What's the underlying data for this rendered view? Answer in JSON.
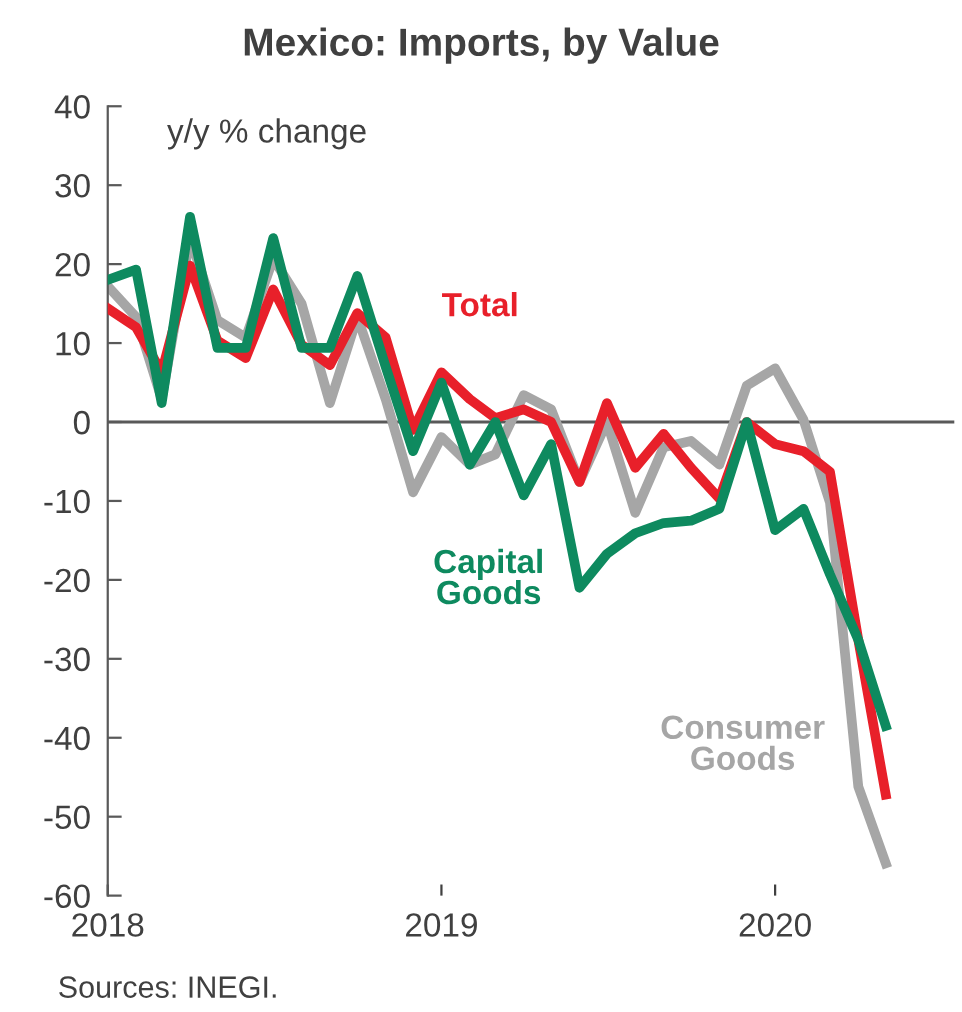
{
  "chart_data": {
    "type": "line",
    "title": "Mexico: Imports, by Value",
    "ylabel": "y/y % change",
    "x": [
      "2018-01",
      "2018-02",
      "2018-03",
      "2018-04",
      "2018-05",
      "2018-06",
      "2018-07",
      "2018-08",
      "2018-09",
      "2018-10",
      "2018-11",
      "2018-12",
      "2019-01",
      "2019-02",
      "2019-03",
      "2019-04",
      "2019-05",
      "2019-06",
      "2019-07",
      "2019-08",
      "2019-09",
      "2019-10",
      "2019-11",
      "2019-12",
      "2020-01",
      "2020-02",
      "2020-03",
      "2020-04",
      "2020-05"
    ],
    "series": [
      {
        "name": "Consumer\nGoods",
        "color": "#a6a6a6",
        "values": [
          17.2,
          13.3,
          2.9,
          23.3,
          12.9,
          10.7,
          20.7,
          15,
          2.4,
          13.3,
          2.9,
          -8.9,
          -1.9,
          -5.4,
          -4.1,
          3.4,
          1.6,
          -7.6,
          0,
          -11.5,
          -3.2,
          -2.4,
          -5.4,
          4.6,
          6.8,
          0.3,
          -10.2,
          -46.2,
          -55.9
        ]
      },
      {
        "name": "Total",
        "color": "#e8202a",
        "values": [
          14.4,
          12,
          6.3,
          19.8,
          10.3,
          8.1,
          16.8,
          9.8,
          7.2,
          13.8,
          10.7,
          -1,
          6.3,
          2.9,
          0.5,
          1.6,
          0,
          -7.6,
          2.4,
          -5.8,
          -1.5,
          -5.8,
          -9.7,
          0,
          -2.8,
          -3.7,
          -6.3,
          -27.6,
          -47.2
        ]
      },
      {
        "name": "Capital\nGoods",
        "color": "#0e8a5f",
        "values": [
          18,
          19.3,
          2.4,
          26,
          9.4,
          9.4,
          23.3,
          9.4,
          9.4,
          18.5,
          7,
          -3.7,
          5,
          -5.4,
          0,
          -9.3,
          -2.8,
          -21,
          -16.7,
          -14.1,
          -12.8,
          -12.5,
          -11,
          0,
          -13.7,
          -11,
          -19.3,
          -27.6,
          -38.5
        ]
      }
    ],
    "xlim": [
      "2018-01-01",
      "2020-07-15"
    ],
    "xticks": [
      {
        "value": "2018-01-01",
        "label": "2018"
      },
      {
        "value": "2019-01-01",
        "label": "2019"
      },
      {
        "value": "2020-01-01",
        "label": "2020"
      }
    ],
    "ylim": [
      -60,
      40
    ],
    "yticks": [
      -60,
      -50,
      -40,
      -30,
      -20,
      -10,
      0,
      10,
      20,
      30,
      40
    ],
    "ref_lines": [
      {
        "axis": "y",
        "value": 0,
        "color": "#595959"
      }
    ],
    "grid": false,
    "legend": false,
    "marker": "none",
    "line_style": "solid",
    "annotations": [
      "Sources: INEGI."
    ]
  }
}
